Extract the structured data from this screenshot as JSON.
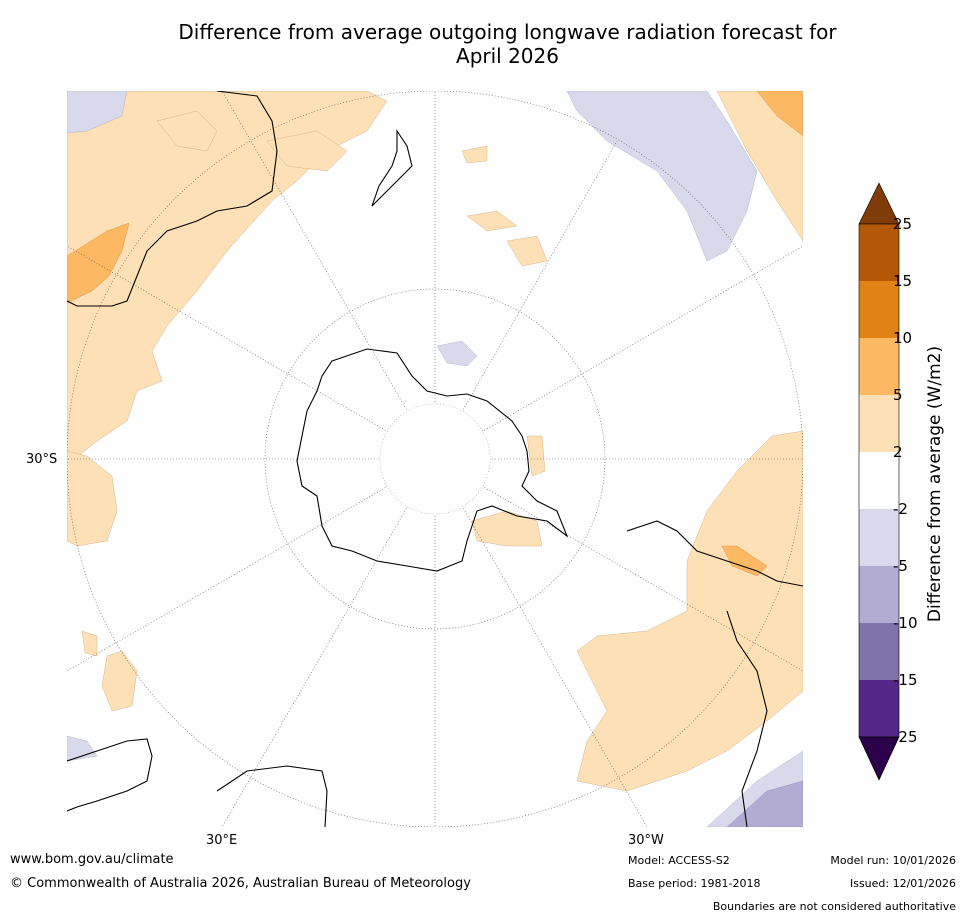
{
  "title_line1": "Difference from average outgoing longwave radiation forecast for",
  "title_line2": "April 2026",
  "map": {
    "projection": "South polar stereographic",
    "lat_label": "30°S",
    "lon_labels": [
      "30°E",
      "30°W"
    ]
  },
  "colorbar": {
    "title": "Difference from average (W/m2)",
    "ticks": [
      "25",
      "15",
      "10",
      "5",
      "2",
      "-2",
      "-5",
      "-10",
      "-15",
      "-25"
    ],
    "colors": {
      "gt25": "#7f3b08",
      "15_25": "#b35806",
      "10_15": "#e08214",
      "5_10": "#fdb863",
      "2_5": "#fee0b6",
      "neutral": "#ffffff",
      "m5_m2": "#d8daeb",
      "m10_m5": "#b2abd2",
      "m15_m10": "#8073ac",
      "m25_m15": "#542788",
      "lt_m25": "#2d004b"
    }
  },
  "footer": {
    "website": "www.bom.gov.au/climate",
    "copyright": "© Commonwealth of Australia 2026, Australian Bureau of Meteorology",
    "model": "Model: ACCESS-S2",
    "base_period": "Base period: 1981-2018",
    "model_run": "Model run: 10/01/2026",
    "issued": "Issued: 12/01/2026",
    "disclaimer": "Boundaries are not considered authoritative"
  }
}
